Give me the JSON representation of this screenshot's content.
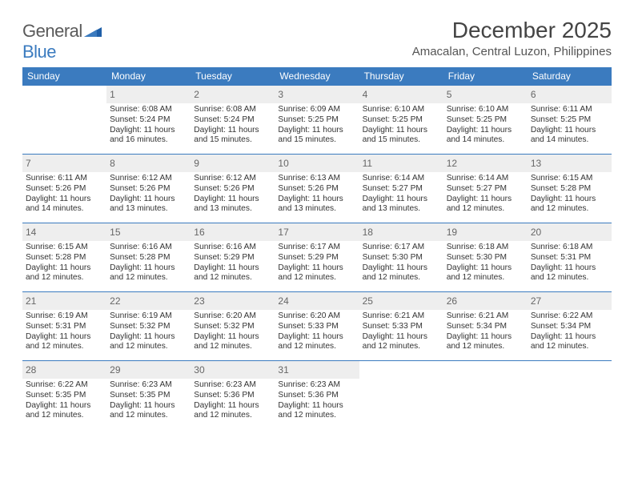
{
  "logo": {
    "word1": "General",
    "word2": "Blue"
  },
  "title": "December 2025",
  "location": "Amacalan, Central Luzon, Philippines",
  "colors": {
    "header_bg": "#3b7bbf",
    "header_text": "#ffffff",
    "cell_border": "#3b7bbf",
    "daynum_bg": "#eeeeee",
    "daynum_text": "#666666",
    "body_text": "#333333",
    "title_text": "#444444",
    "location_text": "#555555",
    "logo_gray": "#5a5a5a",
    "logo_blue": "#3b7bbf",
    "page_bg": "#ffffff"
  },
  "typography": {
    "title_fontsize": 28,
    "location_fontsize": 15,
    "weekday_fontsize": 12,
    "daynum_fontsize": 12,
    "body_fontsize": 10.2,
    "logo_fontsize": 22
  },
  "weekdays": [
    "Sunday",
    "Monday",
    "Tuesday",
    "Wednesday",
    "Thursday",
    "Friday",
    "Saturday"
  ],
  "grid": {
    "start_weekday_index": 1,
    "days_in_month": 31,
    "rows": 5,
    "cols": 7
  },
  "days": [
    {
      "n": 1,
      "sunrise": "6:08 AM",
      "sunset": "5:24 PM",
      "daylight": "11 hours and 16 minutes."
    },
    {
      "n": 2,
      "sunrise": "6:08 AM",
      "sunset": "5:24 PM",
      "daylight": "11 hours and 15 minutes."
    },
    {
      "n": 3,
      "sunrise": "6:09 AM",
      "sunset": "5:25 PM",
      "daylight": "11 hours and 15 minutes."
    },
    {
      "n": 4,
      "sunrise": "6:10 AM",
      "sunset": "5:25 PM",
      "daylight": "11 hours and 15 minutes."
    },
    {
      "n": 5,
      "sunrise": "6:10 AM",
      "sunset": "5:25 PM",
      "daylight": "11 hours and 14 minutes."
    },
    {
      "n": 6,
      "sunrise": "6:11 AM",
      "sunset": "5:25 PM",
      "daylight": "11 hours and 14 minutes."
    },
    {
      "n": 7,
      "sunrise": "6:11 AM",
      "sunset": "5:26 PM",
      "daylight": "11 hours and 14 minutes."
    },
    {
      "n": 8,
      "sunrise": "6:12 AM",
      "sunset": "5:26 PM",
      "daylight": "11 hours and 13 minutes."
    },
    {
      "n": 9,
      "sunrise": "6:12 AM",
      "sunset": "5:26 PM",
      "daylight": "11 hours and 13 minutes."
    },
    {
      "n": 10,
      "sunrise": "6:13 AM",
      "sunset": "5:26 PM",
      "daylight": "11 hours and 13 minutes."
    },
    {
      "n": 11,
      "sunrise": "6:14 AM",
      "sunset": "5:27 PM",
      "daylight": "11 hours and 13 minutes."
    },
    {
      "n": 12,
      "sunrise": "6:14 AM",
      "sunset": "5:27 PM",
      "daylight": "11 hours and 12 minutes."
    },
    {
      "n": 13,
      "sunrise": "6:15 AM",
      "sunset": "5:28 PM",
      "daylight": "11 hours and 12 minutes."
    },
    {
      "n": 14,
      "sunrise": "6:15 AM",
      "sunset": "5:28 PM",
      "daylight": "11 hours and 12 minutes."
    },
    {
      "n": 15,
      "sunrise": "6:16 AM",
      "sunset": "5:28 PM",
      "daylight": "11 hours and 12 minutes."
    },
    {
      "n": 16,
      "sunrise": "6:16 AM",
      "sunset": "5:29 PM",
      "daylight": "11 hours and 12 minutes."
    },
    {
      "n": 17,
      "sunrise": "6:17 AM",
      "sunset": "5:29 PM",
      "daylight": "11 hours and 12 minutes."
    },
    {
      "n": 18,
      "sunrise": "6:17 AM",
      "sunset": "5:30 PM",
      "daylight": "11 hours and 12 minutes."
    },
    {
      "n": 19,
      "sunrise": "6:18 AM",
      "sunset": "5:30 PM",
      "daylight": "11 hours and 12 minutes."
    },
    {
      "n": 20,
      "sunrise": "6:18 AM",
      "sunset": "5:31 PM",
      "daylight": "11 hours and 12 minutes."
    },
    {
      "n": 21,
      "sunrise": "6:19 AM",
      "sunset": "5:31 PM",
      "daylight": "11 hours and 12 minutes."
    },
    {
      "n": 22,
      "sunrise": "6:19 AM",
      "sunset": "5:32 PM",
      "daylight": "11 hours and 12 minutes."
    },
    {
      "n": 23,
      "sunrise": "6:20 AM",
      "sunset": "5:32 PM",
      "daylight": "11 hours and 12 minutes."
    },
    {
      "n": 24,
      "sunrise": "6:20 AM",
      "sunset": "5:33 PM",
      "daylight": "11 hours and 12 minutes."
    },
    {
      "n": 25,
      "sunrise": "6:21 AM",
      "sunset": "5:33 PM",
      "daylight": "11 hours and 12 minutes."
    },
    {
      "n": 26,
      "sunrise": "6:21 AM",
      "sunset": "5:34 PM",
      "daylight": "11 hours and 12 minutes."
    },
    {
      "n": 27,
      "sunrise": "6:22 AM",
      "sunset": "5:34 PM",
      "daylight": "11 hours and 12 minutes."
    },
    {
      "n": 28,
      "sunrise": "6:22 AM",
      "sunset": "5:35 PM",
      "daylight": "11 hours and 12 minutes."
    },
    {
      "n": 29,
      "sunrise": "6:23 AM",
      "sunset": "5:35 PM",
      "daylight": "11 hours and 12 minutes."
    },
    {
      "n": 30,
      "sunrise": "6:23 AM",
      "sunset": "5:36 PM",
      "daylight": "11 hours and 12 minutes."
    },
    {
      "n": 31,
      "sunrise": "6:23 AM",
      "sunset": "5:36 PM",
      "daylight": "11 hours and 12 minutes."
    }
  ],
  "labels": {
    "sunrise": "Sunrise:",
    "sunset": "Sunset:",
    "daylight": "Daylight:"
  }
}
